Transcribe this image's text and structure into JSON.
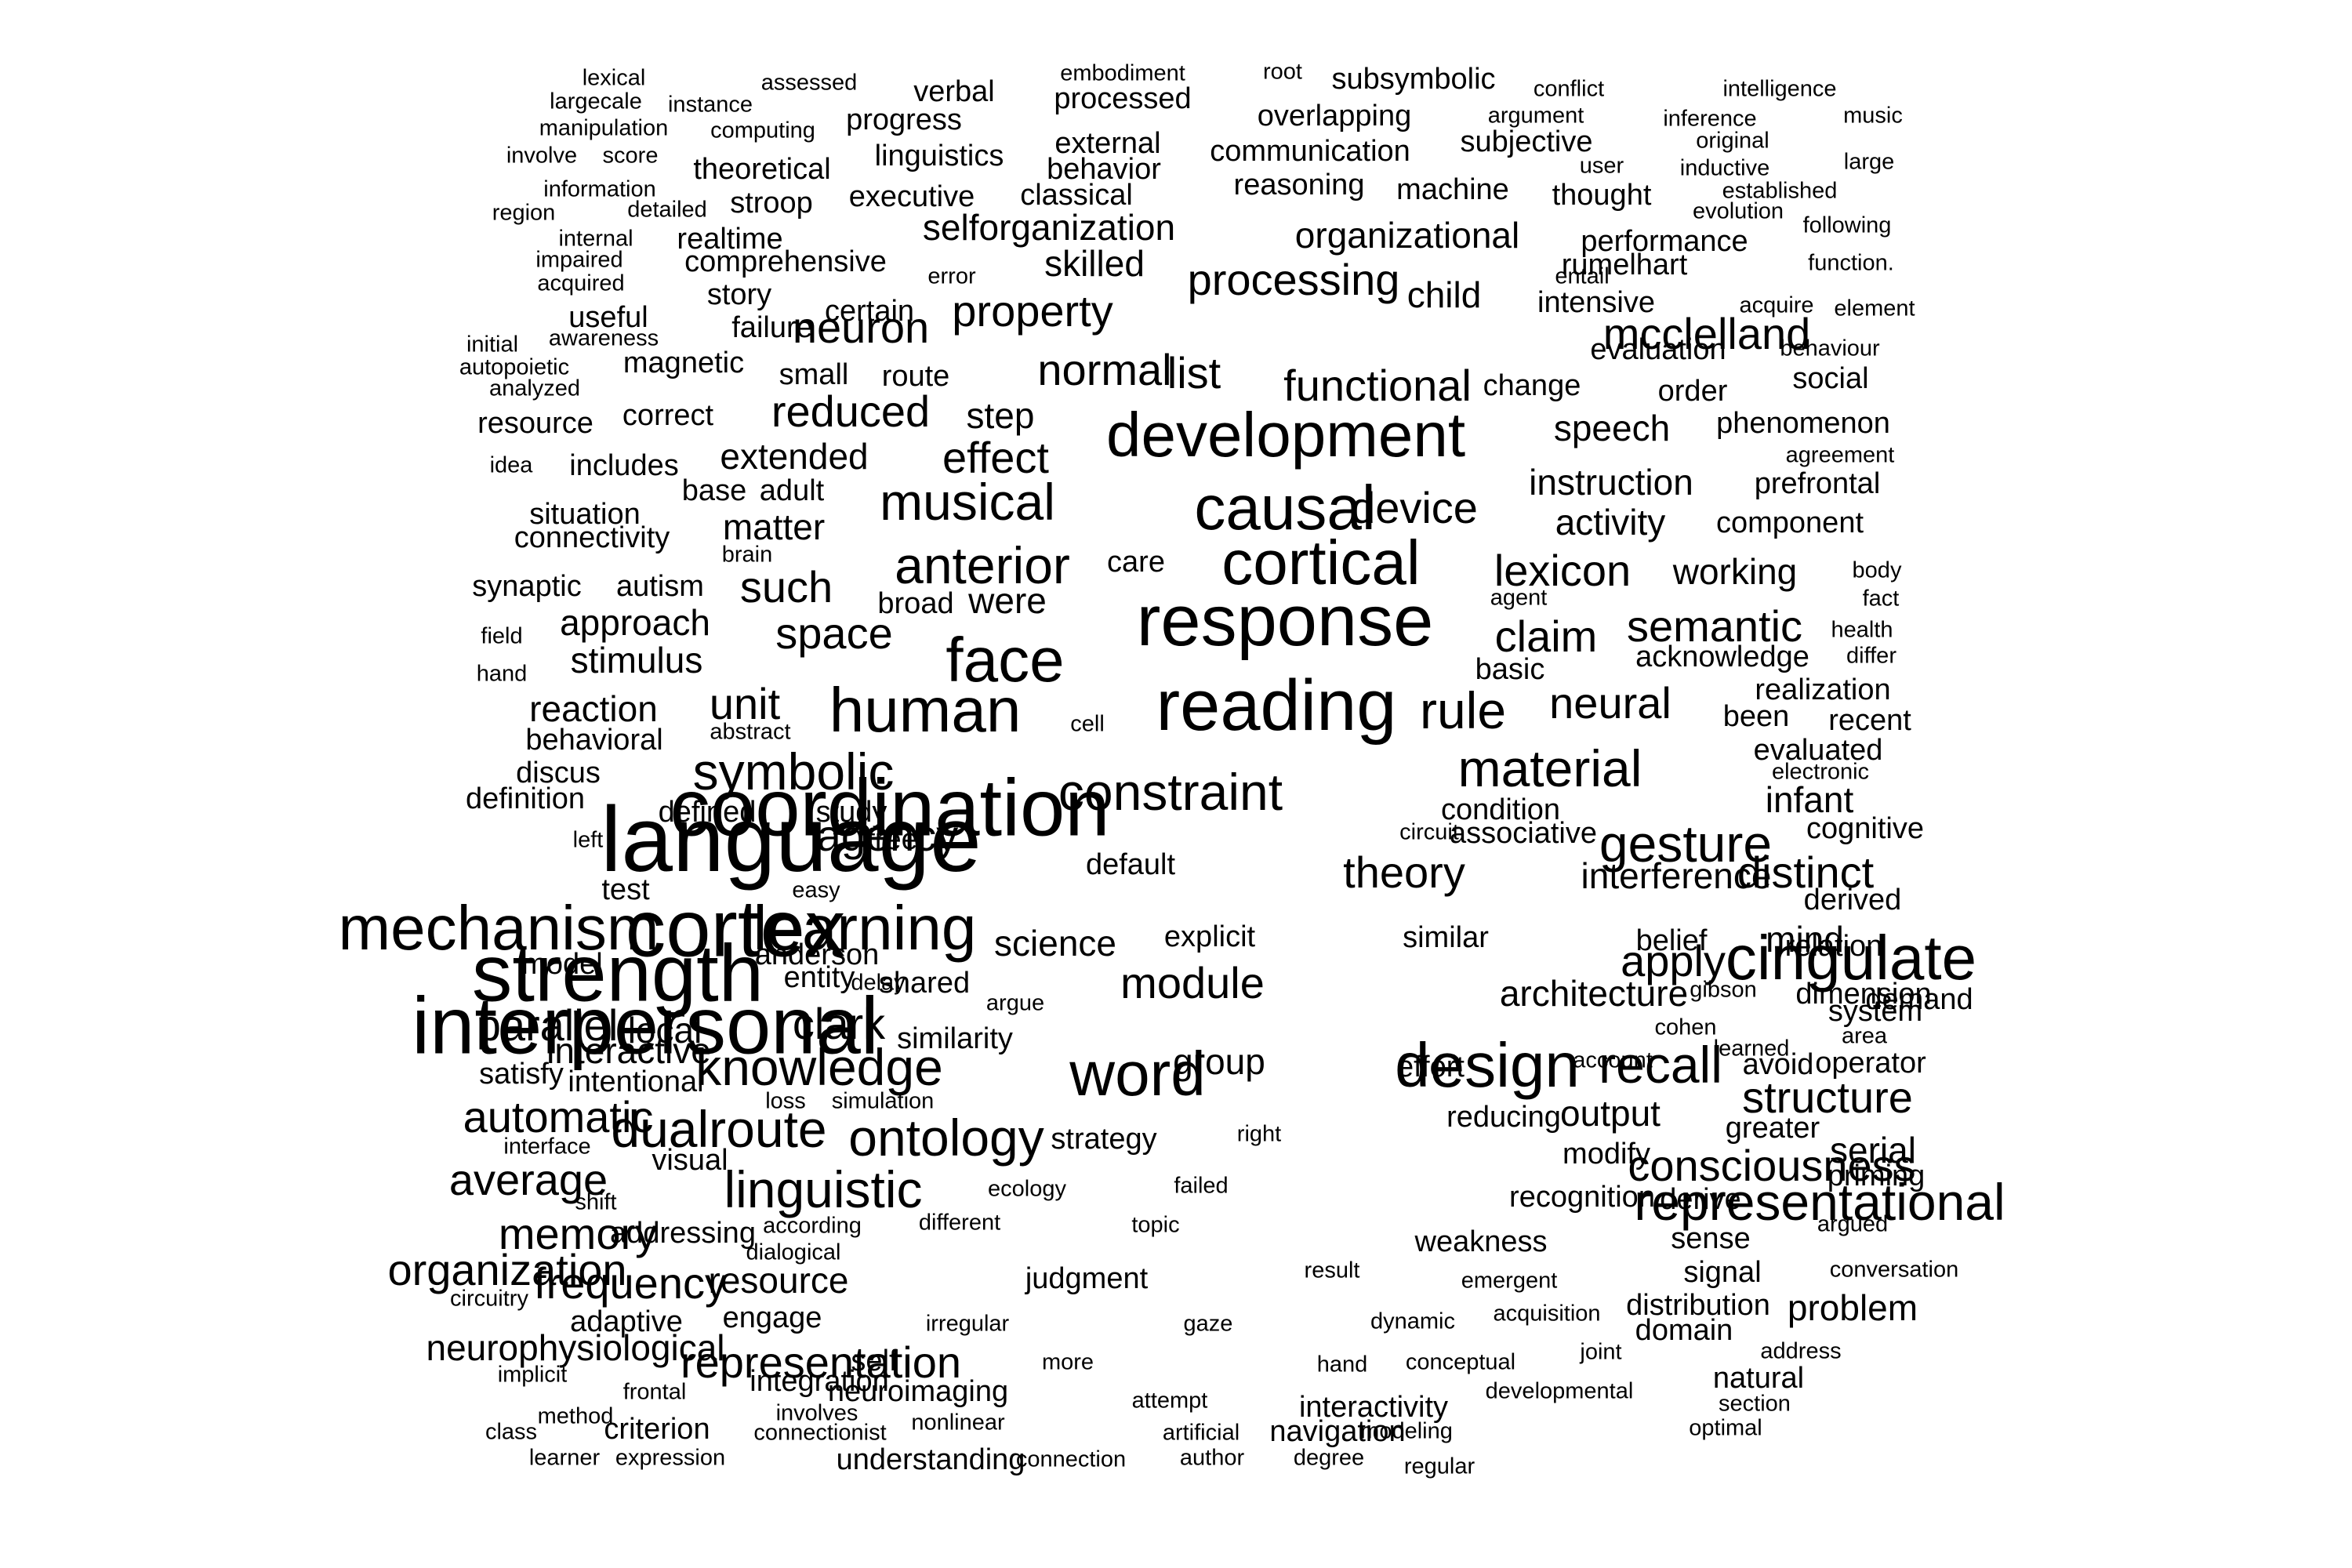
{
  "colors": {
    "background": "#ffffff",
    "text": "#000000"
  },
  "words": [
    {
      "text": "lexical",
      "size": 1
    },
    {
      "text": "assessed",
      "size": 1
    },
    {
      "text": "verbal",
      "size": 2
    },
    {
      "text": "embodiment",
      "size": 1
    },
    {
      "text": "root",
      "size": 1
    },
    {
      "text": "subsymbolic",
      "size": 2
    },
    {
      "text": "conflict",
      "size": 1
    },
    {
      "text": "intelligence",
      "size": 1
    },
    {
      "text": "largecale",
      "size": 1
    },
    {
      "text": "instance",
      "size": 1
    },
    {
      "text": "processed",
      "size": 2
    },
    {
      "text": "overlapping",
      "size": 2
    },
    {
      "text": "argument",
      "size": 1
    },
    {
      "text": "inference",
      "size": 1
    },
    {
      "text": "music",
      "size": 1
    },
    {
      "text": "manipulation",
      "size": 1
    },
    {
      "text": "computing",
      "size": 1
    },
    {
      "text": "progress",
      "size": 2
    },
    {
      "text": "external",
      "size": 2
    },
    {
      "text": "communication",
      "size": 2
    },
    {
      "text": "subjective",
      "size": 2
    },
    {
      "text": "original",
      "size": 1
    },
    {
      "text": "involve",
      "size": 1
    },
    {
      "text": "score",
      "size": 1
    },
    {
      "text": "theoretical",
      "size": 2
    },
    {
      "text": "linguistics",
      "size": 2
    },
    {
      "text": "behavior",
      "size": 2
    },
    {
      "text": "user",
      "size": 1
    },
    {
      "text": "inductive",
      "size": 1
    },
    {
      "text": "large",
      "size": 1
    },
    {
      "text": "information",
      "size": 1
    },
    {
      "text": "executive",
      "size": 2
    },
    {
      "text": "classical",
      "size": 2
    },
    {
      "text": "reasoning",
      "size": 2
    },
    {
      "text": "machine",
      "size": 2
    },
    {
      "text": "thought",
      "size": 2
    },
    {
      "text": "established",
      "size": 1
    },
    {
      "text": "region",
      "size": 1
    },
    {
      "text": "detailed",
      "size": 1
    },
    {
      "text": "stroop",
      "size": 2
    },
    {
      "text": "evolution",
      "size": 1
    },
    {
      "text": "internal",
      "size": 1
    },
    {
      "text": "realtime",
      "size": 2
    },
    {
      "text": "selforganization",
      "size": 3
    },
    {
      "text": "organizational",
      "size": 3
    },
    {
      "text": "performance",
      "size": 2
    },
    {
      "text": "following",
      "size": 1
    },
    {
      "text": "impaired",
      "size": 1
    },
    {
      "text": "comprehensive",
      "size": 2
    },
    {
      "text": "error",
      "size": 1
    },
    {
      "text": "skilled",
      "size": 3
    },
    {
      "text": "rumelhart",
      "size": 2
    },
    {
      "text": "function.",
      "size": 1
    },
    {
      "text": "acquired",
      "size": 1
    },
    {
      "text": "story",
      "size": 2
    },
    {
      "text": "processing",
      "size": 4
    },
    {
      "text": "child",
      "size": 3
    },
    {
      "text": "entail",
      "size": 1
    },
    {
      "text": "useful",
      "size": 2
    },
    {
      "text": "certain",
      "size": 2
    },
    {
      "text": "property",
      "size": 4
    },
    {
      "text": "intensive",
      "size": 2
    },
    {
      "text": "acquire",
      "size": 1
    },
    {
      "text": "element",
      "size": 1
    },
    {
      "text": "awareness",
      "size": 1
    },
    {
      "text": "failure",
      "size": 2
    },
    {
      "text": "neuron",
      "size": 4
    },
    {
      "text": "mcclelland",
      "size": 4
    },
    {
      "text": "initial",
      "size": 1
    },
    {
      "text": "autopoietic",
      "size": 1
    },
    {
      "text": "magnetic",
      "size": 2
    },
    {
      "text": "small",
      "size": 2
    },
    {
      "text": "route",
      "size": 2
    },
    {
      "text": "normal",
      "size": 4
    },
    {
      "text": "list",
      "size": 4
    },
    {
      "text": "evaluation",
      "size": 2
    },
    {
      "text": "behaviour",
      "size": 1
    },
    {
      "text": "analyzed",
      "size": 1
    },
    {
      "text": "functional",
      "size": 4
    },
    {
      "text": "change",
      "size": 2
    },
    {
      "text": "order",
      "size": 2
    },
    {
      "text": "social",
      "size": 2
    },
    {
      "text": "resource",
      "size": 2
    },
    {
      "text": "correct",
      "size": 2
    },
    {
      "text": "reduced",
      "size": 4
    },
    {
      "text": "step",
      "size": 3
    },
    {
      "text": "development",
      "size": 6
    },
    {
      "text": "speech",
      "size": 3
    },
    {
      "text": "phenomenon",
      "size": 2
    },
    {
      "text": "idea",
      "size": 1
    },
    {
      "text": "includes",
      "size": 2
    },
    {
      "text": "extended",
      "size": 3
    },
    {
      "text": "effect",
      "size": 4
    },
    {
      "text": "agreement",
      "size": 1
    },
    {
      "text": "base",
      "size": 2
    },
    {
      "text": "adult",
      "size": 2
    },
    {
      "text": "musical",
      "size": 5
    },
    {
      "text": "causal",
      "size": 6
    },
    {
      "text": "device",
      "size": 4
    },
    {
      "text": "instruction",
      "size": 3
    },
    {
      "text": "prefrontal",
      "size": 2
    },
    {
      "text": "situation",
      "size": 2
    },
    {
      "text": "matter",
      "size": 3
    },
    {
      "text": "activity",
      "size": 3
    },
    {
      "text": "component",
      "size": 2
    },
    {
      "text": "connectivity",
      "size": 2
    },
    {
      "text": "anterior",
      "size": 5
    },
    {
      "text": "cortical",
      "size": 6
    },
    {
      "text": "brain",
      "size": 1
    },
    {
      "text": "synaptic",
      "size": 2
    },
    {
      "text": "autism",
      "size": 2
    },
    {
      "text": "such",
      "size": 4
    },
    {
      "text": "care",
      "size": 2
    },
    {
      "text": "lexicon",
      "size": 4
    },
    {
      "text": "working",
      "size": 3
    },
    {
      "text": "body",
      "size": 1
    },
    {
      "text": "broad",
      "size": 2
    },
    {
      "text": "were",
      "size": 3
    },
    {
      "text": "response",
      "size": 7
    },
    {
      "text": "agent",
      "size": 1
    },
    {
      "text": "fact",
      "size": 1
    },
    {
      "text": "field",
      "size": 1
    },
    {
      "text": "approach",
      "size": 3
    },
    {
      "text": "space",
      "size": 4
    },
    {
      "text": "claim",
      "size": 4
    },
    {
      "text": "semantic",
      "size": 4
    },
    {
      "text": "health",
      "size": 1
    },
    {
      "text": "hand",
      "size": 1
    },
    {
      "text": "stimulus",
      "size": 3
    },
    {
      "text": "face",
      "size": 6
    },
    {
      "text": "acknowledge",
      "size": 2
    },
    {
      "text": "differ",
      "size": 1
    },
    {
      "text": "basic",
      "size": 2
    },
    {
      "text": "realization",
      "size": 2
    },
    {
      "text": "reaction",
      "size": 3
    },
    {
      "text": "unit",
      "size": 4
    },
    {
      "text": "human",
      "size": 6
    },
    {
      "text": "reading",
      "size": 7
    },
    {
      "text": "rule",
      "size": 5
    },
    {
      "text": "neural",
      "size": 4
    },
    {
      "text": "been",
      "size": 2
    },
    {
      "text": "recent",
      "size": 2
    },
    {
      "text": "behavioral",
      "size": 2
    },
    {
      "text": "abstract",
      "size": 1
    },
    {
      "text": "cell",
      "size": 1
    },
    {
      "text": "evaluated",
      "size": 2
    },
    {
      "text": "discus",
      "size": 2
    },
    {
      "text": "symbolic",
      "size": 5
    },
    {
      "text": "material",
      "size": 5
    },
    {
      "text": "electronic",
      "size": 1
    },
    {
      "text": "definition",
      "size": 2
    },
    {
      "text": "coordination",
      "size": 8
    },
    {
      "text": "constraint",
      "size": 5
    },
    {
      "text": "condition",
      "size": 2
    },
    {
      "text": "infant",
      "size": 3
    },
    {
      "text": "defined",
      "size": 2
    },
    {
      "text": "study",
      "size": 2
    },
    {
      "text": "cognitive",
      "size": 2
    },
    {
      "text": "left",
      "size": 1
    },
    {
      "text": "agency",
      "size": 4
    },
    {
      "text": "language",
      "size": 9
    },
    {
      "text": "default",
      "size": 2
    },
    {
      "text": "circuit",
      "size": 1
    },
    {
      "text": "associative",
      "size": 2
    },
    {
      "text": "gesture",
      "size": 5
    },
    {
      "text": "theory",
      "size": 4
    },
    {
      "text": "free",
      "size": 2
    },
    {
      "text": "interference",
      "size": 3
    },
    {
      "text": "distinct",
      "size": 4
    },
    {
      "text": "test",
      "size": 2
    },
    {
      "text": "easy",
      "size": 1
    },
    {
      "text": "derived",
      "size": 2
    },
    {
      "text": "mechanism",
      "size": 6
    },
    {
      "text": "cortex",
      "size": 8
    },
    {
      "text": "learning",
      "size": 6
    },
    {
      "text": "science",
      "size": 3
    },
    {
      "text": "explicit",
      "size": 2
    },
    {
      "text": "similar",
      "size": 2
    },
    {
      "text": "belief",
      "size": 2
    },
    {
      "text": "mind",
      "size": 3
    },
    {
      "text": "model",
      "size": 2
    },
    {
      "text": "anderson",
      "size": 2
    },
    {
      "text": "relation",
      "size": 2
    },
    {
      "text": "strength",
      "size": 8
    },
    {
      "text": "local",
      "size": 3
    },
    {
      "text": "entity",
      "size": 2
    },
    {
      "text": "delay",
      "size": 1
    },
    {
      "text": "shared",
      "size": 2
    },
    {
      "text": "module",
      "size": 4
    },
    {
      "text": "apply",
      "size": 4
    },
    {
      "text": "cingulate",
      "size": 6
    },
    {
      "text": "argue",
      "size": 1
    },
    {
      "text": "architecture",
      "size": 3
    },
    {
      "text": "gibson",
      "size": 1
    },
    {
      "text": "dimension",
      "size": 2
    },
    {
      "text": "parallel",
      "size": 4
    },
    {
      "text": "interpersonal",
      "size": 8
    },
    {
      "text": "clark",
      "size": 4
    },
    {
      "text": "group",
      "size": 3
    },
    {
      "text": "effort",
      "size": 2
    },
    {
      "text": "account",
      "size": 1
    },
    {
      "text": "learned",
      "size": 1
    },
    {
      "text": "demand",
      "size": 2
    },
    {
      "text": "similarity",
      "size": 2
    },
    {
      "text": "cohen",
      "size": 1
    },
    {
      "text": "area",
      "size": 1
    },
    {
      "text": "system",
      "size": 2
    },
    {
      "text": "interactive",
      "size": 3
    },
    {
      "text": "knowledge",
      "size": 5
    },
    {
      "text": "word",
      "size": 6
    },
    {
      "text": "design",
      "size": 6
    },
    {
      "text": "recall",
      "size": 5
    },
    {
      "text": "avoid",
      "size": 2
    },
    {
      "text": "operator",
      "size": 2
    },
    {
      "text": "satisfy",
      "size": 2
    },
    {
      "text": "intentional",
      "size": 2
    },
    {
      "text": "structure",
      "size": 4
    },
    {
      "text": "loss",
      "size": 1
    },
    {
      "text": "simulation",
      "size": 1
    },
    {
      "text": "automatic",
      "size": 4
    },
    {
      "text": "dualroute",
      "size": 5
    },
    {
      "text": "ontology",
      "size": 5
    },
    {
      "text": "strategy",
      "size": 2
    },
    {
      "text": "right",
      "size": 1
    },
    {
      "text": "reducing",
      "size": 2
    },
    {
      "text": "output",
      "size": 3
    },
    {
      "text": "greater",
      "size": 2
    },
    {
      "text": "interface",
      "size": 1
    },
    {
      "text": "visual",
      "size": 2
    },
    {
      "text": "modify",
      "size": 2
    },
    {
      "text": "serial",
      "size": 3
    },
    {
      "text": "average",
      "size": 4
    },
    {
      "text": "linguistic",
      "size": 5
    },
    {
      "text": "ecology",
      "size": 1
    },
    {
      "text": "failed",
      "size": 1
    },
    {
      "text": "consciousness",
      "size": 4
    },
    {
      "text": "priming",
      "size": 2
    },
    {
      "text": "shift",
      "size": 1
    },
    {
      "text": "recognition",
      "size": 2
    },
    {
      "text": "derive",
      "size": 2
    },
    {
      "text": "representational",
      "size": 5
    },
    {
      "text": "memory",
      "size": 4
    },
    {
      "text": "addressing",
      "size": 2
    },
    {
      "text": "according",
      "size": 1
    },
    {
      "text": "different",
      "size": 1
    },
    {
      "text": "topic",
      "size": 1
    },
    {
      "text": "argued",
      "size": 1
    },
    {
      "text": "dialogical",
      "size": 1
    },
    {
      "text": "weakness",
      "size": 2
    },
    {
      "text": "sense",
      "size": 2
    },
    {
      "text": "organization",
      "size": 4
    },
    {
      "text": "frequency",
      "size": 4
    },
    {
      "text": "resource",
      "size": 3
    },
    {
      "text": "judgment",
      "size": 2
    },
    {
      "text": "result",
      "size": 1
    },
    {
      "text": "emergent",
      "size": 1
    },
    {
      "text": "signal",
      "size": 2
    },
    {
      "text": "conversation",
      "size": 1
    },
    {
      "text": "circuitry",
      "size": 1
    },
    {
      "text": "distribution",
      "size": 2
    },
    {
      "text": "problem",
      "size": 3
    },
    {
      "text": "adaptive",
      "size": 2
    },
    {
      "text": "engage",
      "size": 2
    },
    {
      "text": "irregular",
      "size": 1
    },
    {
      "text": "gaze",
      "size": 1
    },
    {
      "text": "dynamic",
      "size": 1
    },
    {
      "text": "acquisition",
      "size": 1
    },
    {
      "text": "domain",
      "size": 2
    },
    {
      "text": "neurophysiological",
      "size": 3
    },
    {
      "text": "joint",
      "size": 1
    },
    {
      "text": "address",
      "size": 1
    },
    {
      "text": "representation",
      "size": 4
    },
    {
      "text": "self",
      "size": 2
    },
    {
      "text": "more",
      "size": 1
    },
    {
      "text": "hand",
      "size": 1
    },
    {
      "text": "conceptual",
      "size": 1
    },
    {
      "text": "implicit",
      "size": 1
    },
    {
      "text": "integration",
      "size": 2
    },
    {
      "text": "natural",
      "size": 2
    },
    {
      "text": "frontal",
      "size": 1
    },
    {
      "text": "neuroimaging",
      "size": 2
    },
    {
      "text": "developmental",
      "size": 1
    },
    {
      "text": "method",
      "size": 1
    },
    {
      "text": "involves",
      "size": 1
    },
    {
      "text": "attempt",
      "size": 1
    },
    {
      "text": "interactivity",
      "size": 2
    },
    {
      "text": "section",
      "size": 1
    },
    {
      "text": "class",
      "size": 1
    },
    {
      "text": "criterion",
      "size": 2
    },
    {
      "text": "connectionist",
      "size": 1
    },
    {
      "text": "nonlinear",
      "size": 1
    },
    {
      "text": "artificial",
      "size": 1
    },
    {
      "text": "navigation",
      "size": 2
    },
    {
      "text": "modeling",
      "size": 1
    },
    {
      "text": "optimal",
      "size": 1
    },
    {
      "text": "learner",
      "size": 1
    },
    {
      "text": "expression",
      "size": 1
    },
    {
      "text": "understanding",
      "size": 2
    },
    {
      "text": "connection",
      "size": 1
    },
    {
      "text": "author",
      "size": 1
    },
    {
      "text": "degree",
      "size": 1
    },
    {
      "text": "regular",
      "size": 1
    }
  ]
}
